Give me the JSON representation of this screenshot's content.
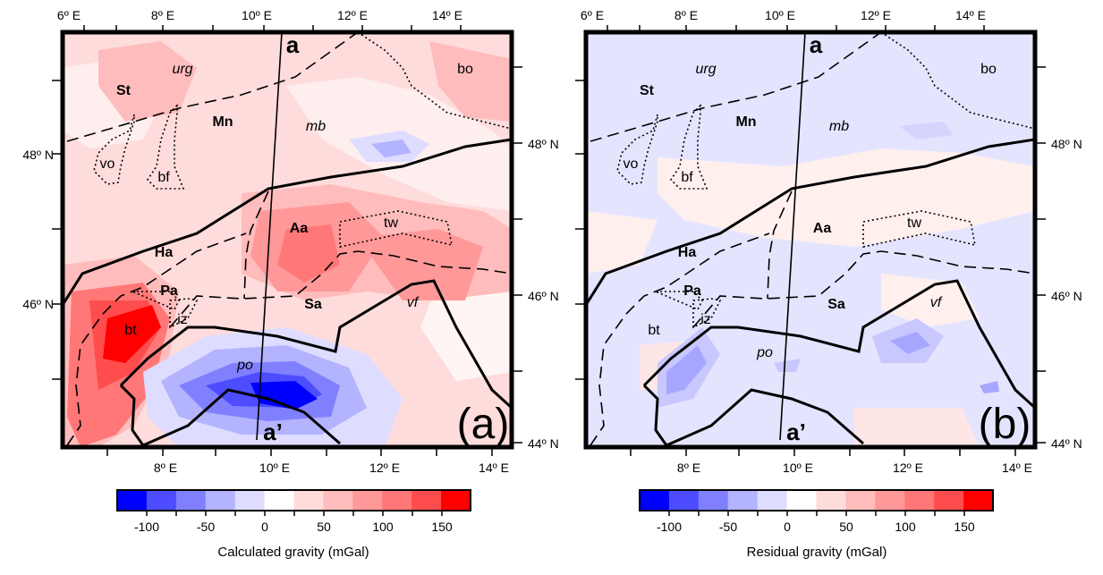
{
  "lon_top_labels": [
    "6º E",
    "8º E",
    "10º E",
    "12º E",
    "14º E"
  ],
  "lon_bottom_labels": [
    "8º E",
    "10º E",
    "12º E",
    "14º E"
  ],
  "lat_labels": [
    "48º N",
    "46º N",
    "44º N"
  ],
  "regions": {
    "st": "St",
    "urg": "urg",
    "mn": "Mn",
    "mb": "mb",
    "bo": "bo",
    "vo": "vo",
    "bf": "bf",
    "aa": "Aa",
    "tw": "tw",
    "ha": "Ha",
    "pa": "Pa",
    "sa": "Sa",
    "vf": "vf",
    "iz": "iz",
    "bt": "bt",
    "po": "po"
  },
  "profile_start": "a",
  "profile_end": "a’",
  "panel_a_tag": "(a)",
  "panel_b_tag": "(b)",
  "colorbar_ticks": [
    "-100",
    "-50",
    "0",
    "50",
    "100",
    "150"
  ],
  "colorbar_a_title": "Calculated gravity (mGal)",
  "colorbar_b_title": "Residual  gravity (mGal)",
  "colorbar_colors": [
    "#0000ff",
    "#4d4dff",
    "#8080ff",
    "#b3b3ff",
    "#dedcff",
    "#ffffff",
    "#ffdcdc",
    "#ffbcbc",
    "#ff9999",
    "#ff7777",
    "#ff4d4d",
    "#ff0000"
  ],
  "map_colors": {
    "a_base": "#ffdcdc",
    "b_base": "#e4e4ff"
  }
}
